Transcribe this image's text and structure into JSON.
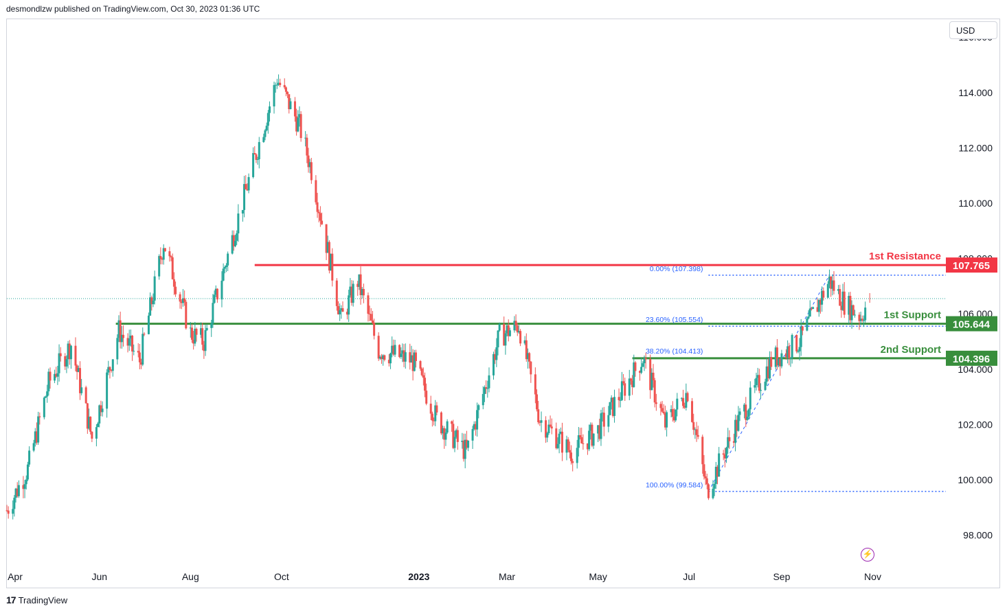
{
  "header": {
    "text": "desmondlzw published on TradingView.com, Oct 30, 2023 01:36 UTC"
  },
  "currency": "USD",
  "footer": {
    "brand": "TradingView"
  },
  "icons": {
    "alert": "lightning-icon",
    "logo": "tradingview-logo-icon"
  },
  "colors": {
    "up": "#26a69a",
    "down": "#ef5350",
    "resistance": "#f23645",
    "support": "#388e3c",
    "fib": "#2962ff",
    "text": "#131722"
  },
  "chart_data": {
    "type": "candlestick",
    "title": "",
    "ylim": [
      97.0,
      116.5
    ],
    "y_ticks": [
      98,
      100,
      102,
      104,
      106,
      108,
      110,
      112,
      114,
      116
    ],
    "y_tick_labels": [
      "98.000",
      "100.000",
      "102.000",
      "104.000",
      "106.000",
      "108.000",
      "110.000",
      "112.000",
      "114.000",
      "116.000"
    ],
    "x_labels": [
      "Apr",
      "Jun",
      "Aug",
      "Oct",
      "2023",
      "Mar",
      "May",
      "Jul",
      "Sep",
      "Nov"
    ],
    "x_label_dates": [
      "2022-04-01",
      "2022-06-01",
      "2022-08-01",
      "2022-10-01",
      "2023-01-01",
      "2023-03-01",
      "2023-05-01",
      "2023-07-01",
      "2023-09-01",
      "2023-11-01"
    ],
    "x_range": [
      "2022-03-31",
      "2023-12-20"
    ],
    "last_price": 106.55,
    "anchors": [
      [
        "2022-03-31",
        98.9
      ],
      [
        "2022-04-14",
        100.4
      ],
      [
        "2022-04-28",
        103.5
      ],
      [
        "2022-05-13",
        104.9
      ],
      [
        "2022-05-27",
        101.5
      ],
      [
        "2022-06-14",
        105.4
      ],
      [
        "2022-06-28",
        104.3
      ],
      [
        "2022-07-14",
        108.6
      ],
      [
        "2022-08-01",
        105.3
      ],
      [
        "2022-08-10",
        105.0
      ],
      [
        "2022-08-29",
        108.7
      ],
      [
        "2022-09-28",
        114.5
      ],
      [
        "2022-10-13",
        112.8
      ],
      [
        "2022-10-21",
        111.2
      ],
      [
        "2022-11-02",
        108.0
      ],
      [
        "2022-11-10",
        105.8
      ],
      [
        "2022-11-21",
        107.2
      ],
      [
        "2022-12-05",
        104.7
      ],
      [
        "2022-12-28",
        104.3
      ],
      [
        "2023-01-13",
        102.2
      ],
      [
        "2023-02-02",
        101.0
      ],
      [
        "2023-02-24",
        105.2
      ],
      [
        "2023-03-09",
        105.6
      ],
      [
        "2023-03-23",
        102.2
      ],
      [
        "2023-04-13",
        101.0
      ],
      [
        "2023-05-01",
        101.8
      ],
      [
        "2023-05-31",
        104.4
      ],
      [
        "2023-06-15",
        102.0
      ],
      [
        "2023-06-30",
        103.2
      ],
      [
        "2023-07-13",
        99.6
      ],
      [
        "2023-08-01",
        101.9
      ],
      [
        "2023-08-25",
        104.3
      ],
      [
        "2023-09-13",
        105.0
      ],
      [
        "2023-10-03",
        107.2
      ],
      [
        "2023-10-13",
        106.4
      ],
      [
        "2023-10-24",
        105.9
      ],
      [
        "2023-10-30",
        106.55
      ]
    ],
    "levels": [
      {
        "label": "1st Resistance",
        "value": 107.765,
        "value_label": "107.765",
        "from": "2022-09-13",
        "color": "#f23645"
      },
      {
        "label": "1st Support",
        "value": 105.644,
        "value_label": "105.644",
        "from": "2022-06-12",
        "color": "#388e3c"
      },
      {
        "label": "2nd Support",
        "value": 104.396,
        "value_label": "104.396",
        "from": "2023-05-24",
        "color": "#388e3c"
      }
    ],
    "fibonacci": [
      {
        "label": "0.00% (107.398)",
        "value": 107.398
      },
      {
        "label": "23.60% (105.554)",
        "value": 105.554
      },
      {
        "label": "38.20% (104.413)",
        "value": 104.413
      },
      {
        "label": "100.00% (99.584)",
        "value": 99.584
      }
    ],
    "fib_trend": [
      [
        "2023-07-14",
        99.584
      ],
      [
        "2023-10-03",
        107.398
      ]
    ]
  }
}
